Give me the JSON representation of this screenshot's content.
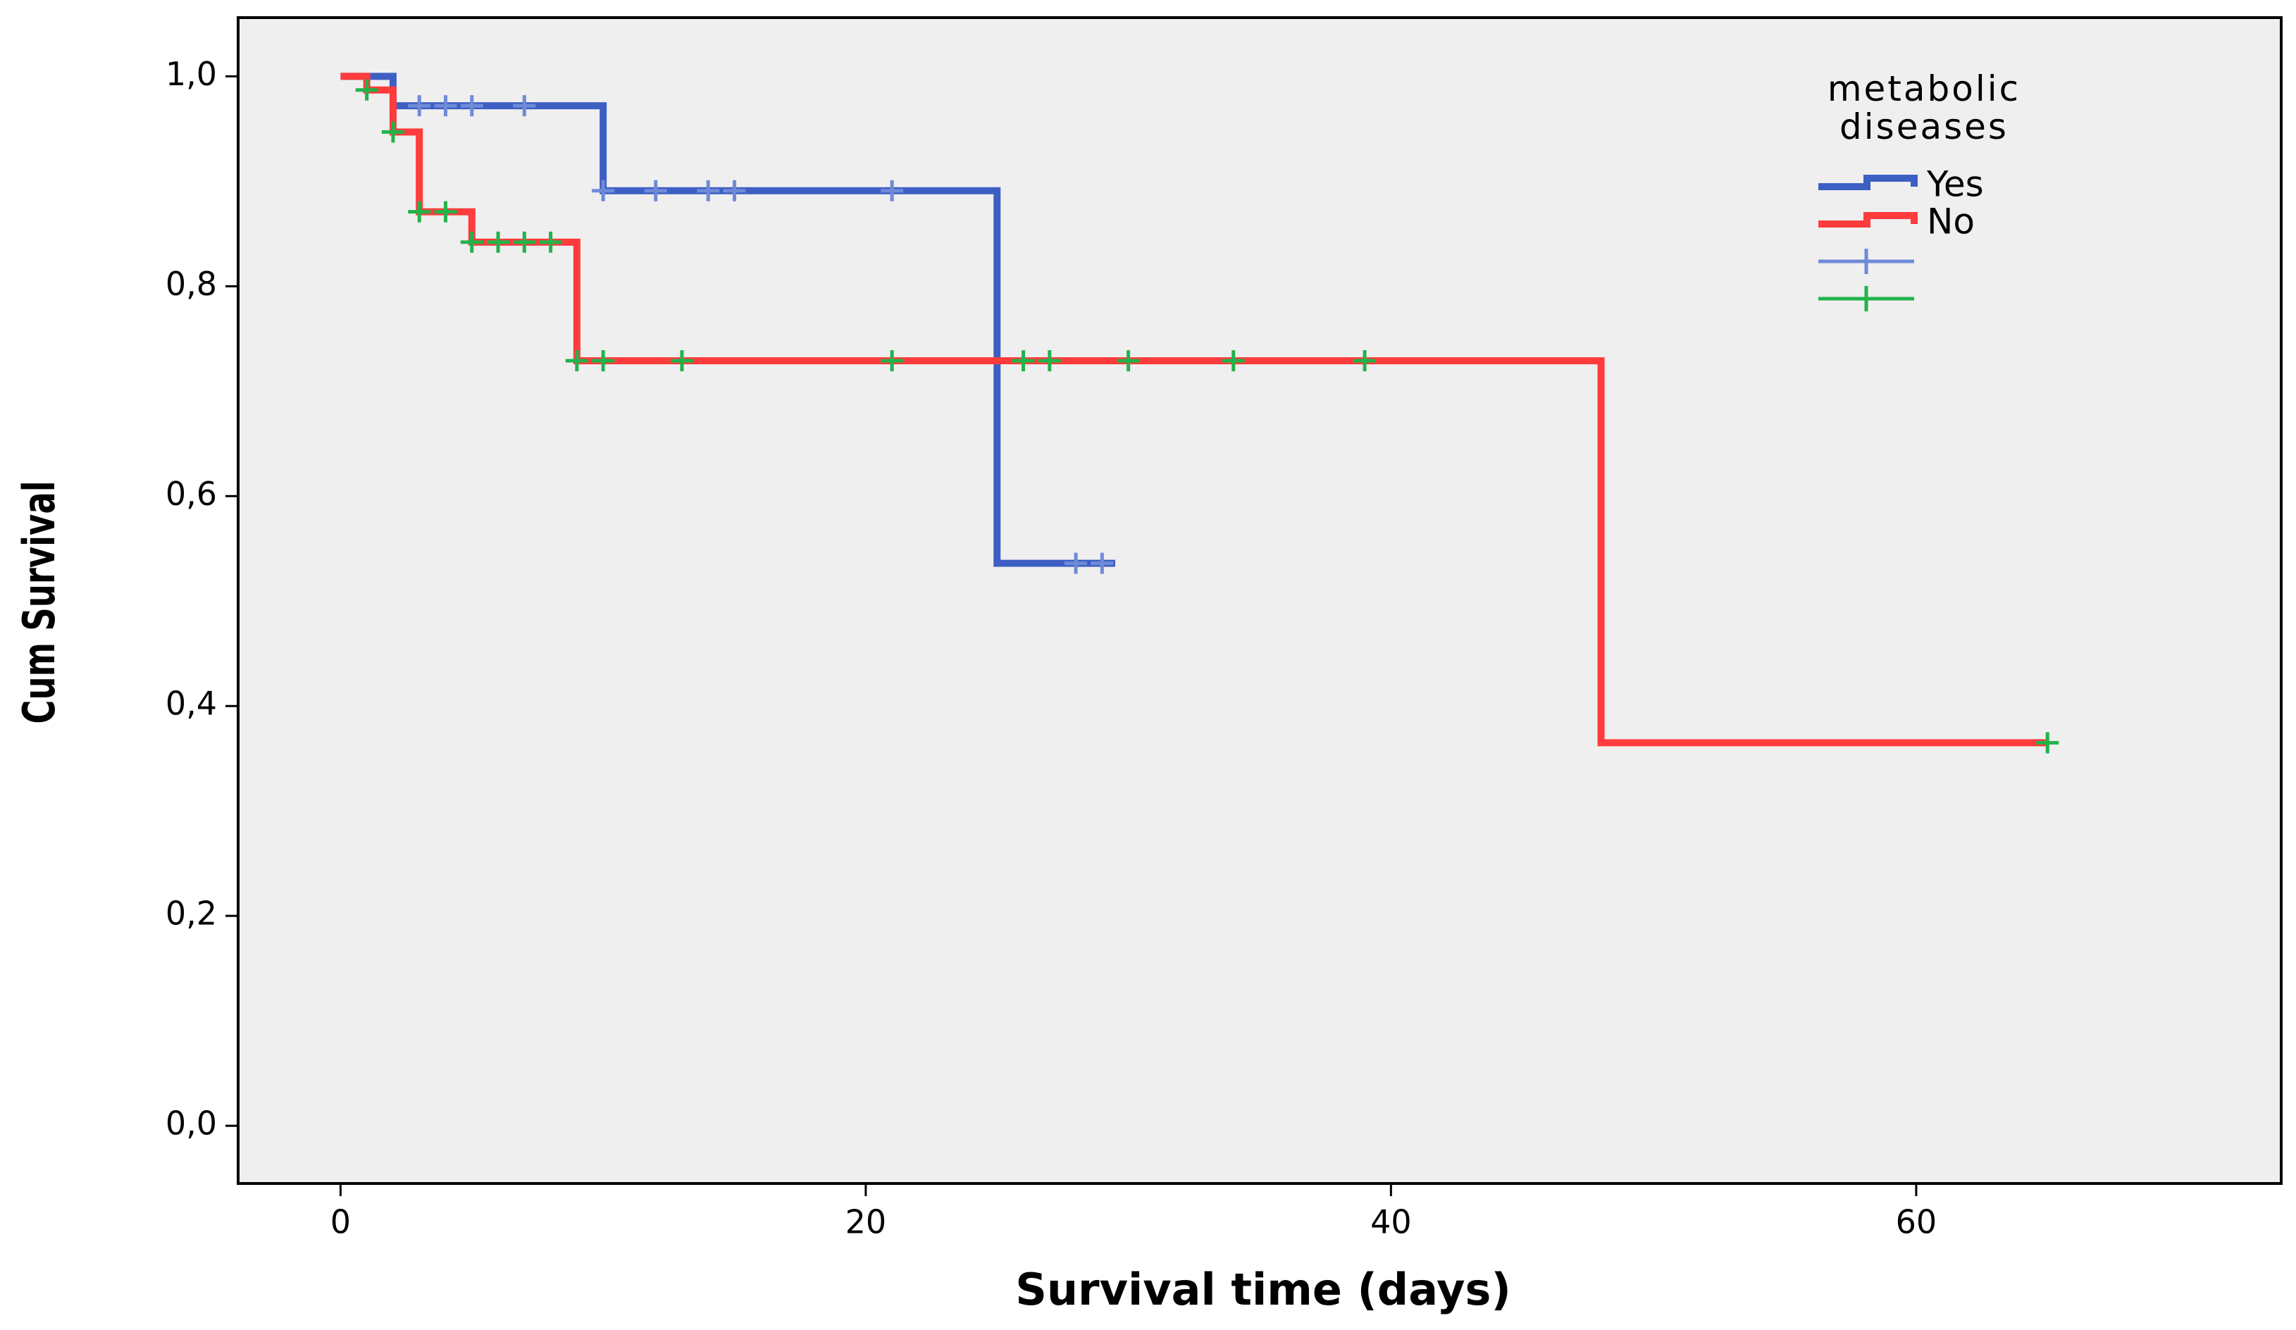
{
  "chart_data": {
    "type": "survival",
    "x_label": "Survival time (days)",
    "y_label": "Cum Survival",
    "legend_title": "metabolic diseases",
    "xlim": [
      -3.9,
      73.9
    ],
    "ylim": [
      -0.055,
      1.056
    ],
    "xticks": [
      0,
      20,
      40,
      60
    ],
    "yticks": [
      {
        "value": 0,
        "label": "0,0"
      },
      {
        "value": 0.2,
        "label": "0,2"
      },
      {
        "value": 0.4,
        "label": "0,4"
      },
      {
        "value": 0.6,
        "label": "0,6"
      },
      {
        "value": 0.8,
        "label": "0,8"
      },
      {
        "value": 1,
        "label": "1,0"
      }
    ],
    "series": [
      {
        "name": "Yes",
        "kind": "step",
        "color": "#3d5fc4",
        "x": [
          0,
          2,
          10,
          25,
          29.5
        ],
        "values": [
          1,
          0.972,
          0.891,
          0.536,
          0.536
        ]
      },
      {
        "name": "No",
        "kind": "step",
        "color": "#ff3b3b",
        "x": [
          0,
          1,
          2,
          3,
          5,
          9,
          48,
          65
        ],
        "values": [
          1,
          0.987,
          0.947,
          0.871,
          0.842,
          0.729,
          0.365,
          0.365
        ]
      },
      {
        "kind": "censor",
        "color": "#6f8ad8",
        "x": [
          3,
          4,
          5,
          7,
          10,
          12,
          14,
          15,
          21,
          28,
          29
        ],
        "values": [
          0.972,
          0.972,
          0.972,
          0.972,
          0.891,
          0.891,
          0.891,
          0.891,
          0.891,
          0.536,
          0.536
        ]
      },
      {
        "kind": "censor",
        "color": "#22b24a",
        "x": [
          1,
          2,
          3,
          4,
          5,
          6,
          7,
          8,
          9,
          10,
          13,
          21,
          26,
          27,
          30,
          34,
          39,
          65
        ],
        "values": [
          0.987,
          0.947,
          0.871,
          0.871,
          0.842,
          0.842,
          0.842,
          0.842,
          0.729,
          0.729,
          0.729,
          0.729,
          0.729,
          0.729,
          0.729,
          0.729,
          0.729,
          0.365
        ]
      }
    ]
  }
}
